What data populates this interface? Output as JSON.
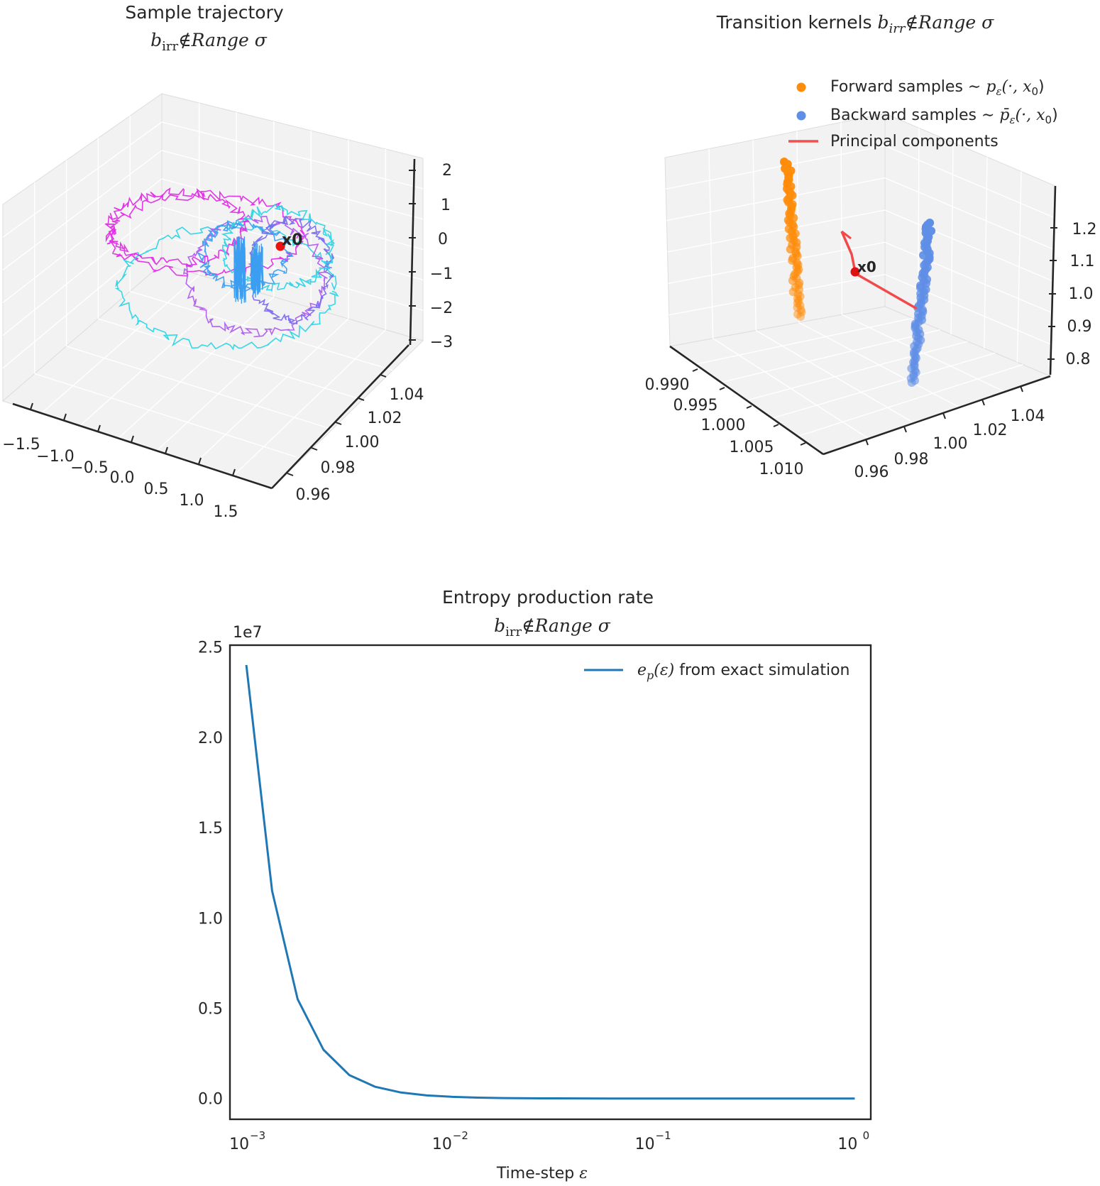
{
  "figure": {
    "panels": [
      {
        "id": "sample-trajectory",
        "title_line1": "Sample trajectory",
        "title_line2": "b_irr ∉ Range σ",
        "marker_label": "x0",
        "x_ticks": [
          "−1.5",
          "−1.0",
          "−0.5",
          "0.0",
          "0.5",
          "1.0",
          "1.5"
        ],
        "y_ticks": [
          "0.96",
          "0.98",
          "1.00",
          "1.02",
          "1.04"
        ],
        "z_ticks": [
          "2",
          "1",
          "0",
          "−1",
          "−2",
          "−3"
        ],
        "series_colors": [
          "#e22ce8",
          "#b05cf0",
          "#2ed4e6",
          "#3c9ef0",
          "#7a6cf0"
        ]
      },
      {
        "id": "transition-kernels",
        "title": "Transition kernels b_irr ∉ Range σ",
        "marker_label": "x0",
        "legend": [
          {
            "label": "Forward samples ∼ p_ε(·, x0)",
            "color": "#ff8c0a"
          },
          {
            "label": "Backward samples ∼ p̄_ε(·, x0)",
            "color": "#5f8ee6"
          },
          {
            "label": "Principal components",
            "color": "#f05050"
          }
        ],
        "x_ticks": [
          "0.990",
          "0.995",
          "1.000",
          "1.005",
          "1.010"
        ],
        "y_ticks": [
          "0.96",
          "0.98",
          "1.00",
          "1.02",
          "1.04"
        ],
        "z_ticks": [
          "1.2",
          "1.1",
          "1.0",
          "0.9",
          "0.8"
        ]
      }
    ]
  },
  "chart_data": [
    {
      "type": "line",
      "title": "Entropy production rate",
      "subtitle": "b_irr ∉ Range σ",
      "xlabel": "Time-step ε",
      "ylabel": "",
      "x_scale": "log",
      "xlim": [
        0.00083,
        1.2
      ],
      "ylim": [
        -1150000,
        25100000
      ],
      "y_offset_label": "1e7",
      "x_tick_values": [
        0.001,
        0.01,
        0.1,
        1
      ],
      "x_tick_labels": [
        "10",
        "10",
        "10",
        "10"
      ],
      "x_tick_exponents": [
        "−3",
        "−2",
        "−1",
        "0"
      ],
      "y_tick_values": [
        0,
        5000000,
        10000000,
        15000000,
        20000000,
        25000000
      ],
      "y_tick_labels": [
        "0.0",
        "0.5",
        "1.0",
        "1.5",
        "2.0",
        "2.5"
      ],
      "grid": false,
      "legend_position": "upper right",
      "series": [
        {
          "name": "e_p(ε) from exact simulation",
          "color": "#1f77b4",
          "x": [
            0.001,
            0.00134,
            0.00179,
            0.0024,
            0.00322,
            0.00432,
            0.00579,
            0.00776,
            0.0104,
            0.0139,
            0.0187,
            0.025,
            0.0336,
            0.045,
            0.0603,
            0.0808,
            0.108,
            0.145,
            0.195,
            0.261,
            0.35,
            0.469,
            0.629,
            0.843,
            1.0
          ],
          "y": [
            24000000,
            11500000,
            5500000,
            2700000,
            1300000,
            650000,
            330000,
            170000,
            90000,
            48000,
            26000,
            14000,
            8000,
            4500,
            2600,
            1500,
            900,
            500,
            300,
            180,
            110,
            70,
            40,
            25,
            20
          ]
        }
      ]
    }
  ]
}
